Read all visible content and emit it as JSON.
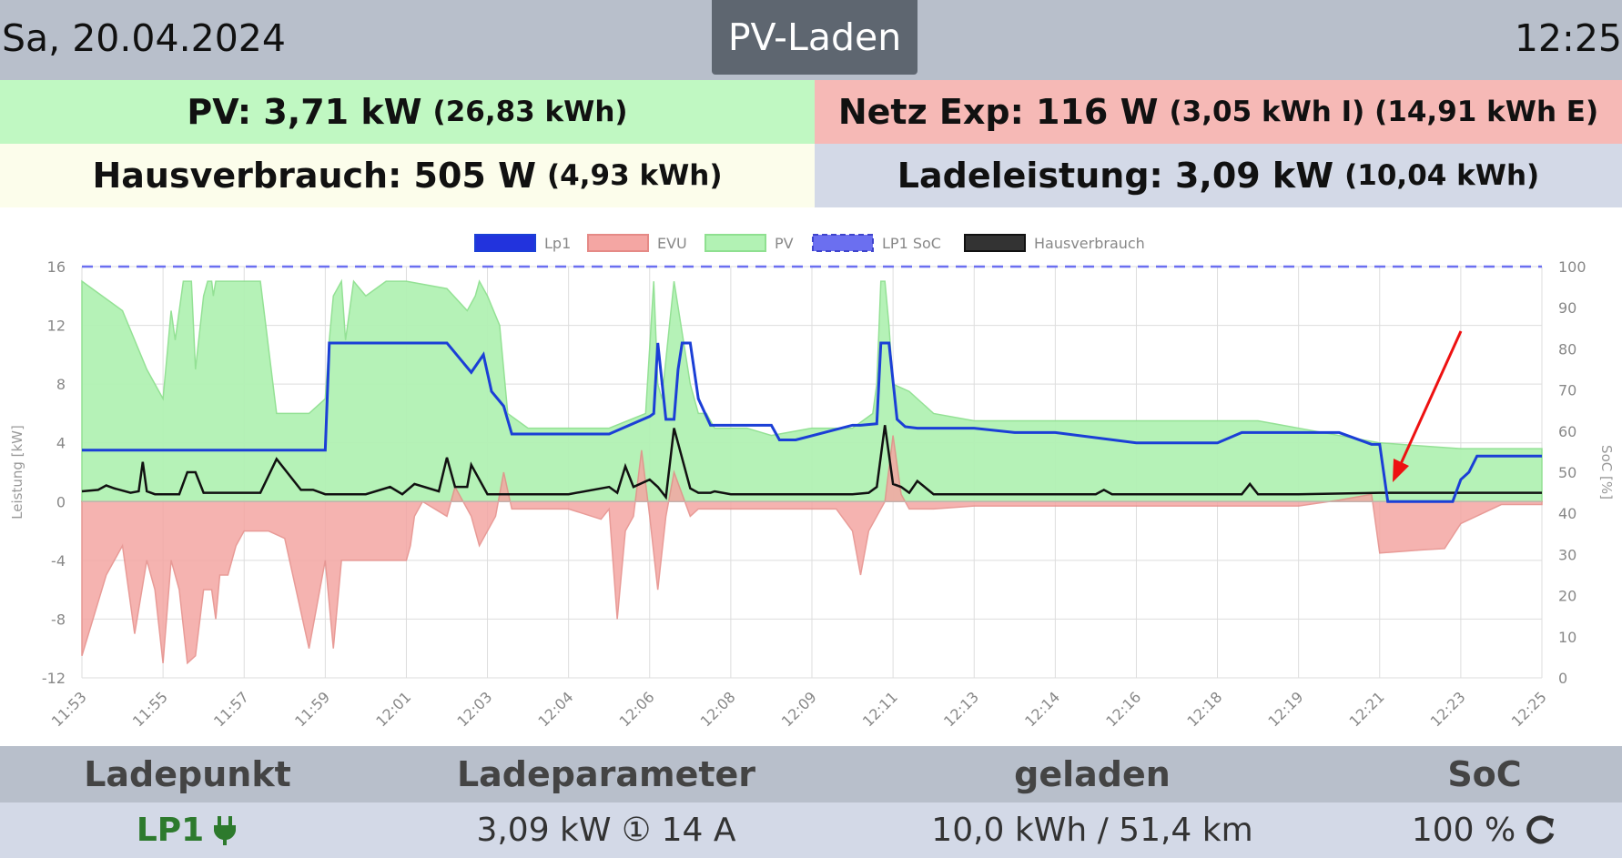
{
  "header": {
    "date": "Sa, 20.04.2024",
    "title": "PV-Laden",
    "time": "12:25"
  },
  "info": {
    "pv_label": "PV: 3,71 kW",
    "pv_energy": "(26,83 kWh)",
    "netz_label": "Netz Exp: 116 W",
    "netz_energy": "(3,05 kWh I) (14,91 kWh E)",
    "haus_label": "Hausverbrauch: 505 W",
    "haus_energy": "(4,93 kWh)",
    "lade_label": "Ladeleistung: 3,09 kW",
    "lade_energy": "(10,04 kWh)"
  },
  "colors": {
    "pv_fill": "#b2f2b4",
    "evu_fill": "#f4a6a3",
    "lp1_line": "#1b3fd6",
    "soc_line": "#6b6ff0",
    "haus_line": "#111111",
    "arrow": "#ee1111"
  },
  "chart_data": {
    "type": "area",
    "legend": [
      "Lp1",
      "EVU",
      "PV",
      "LP1 SoC",
      "Hausverbrauch"
    ],
    "legend_position": "top-center",
    "ylabel": "Leistung [kW]",
    "y2label": "SoC [%]",
    "ylim": [
      -12,
      16
    ],
    "y2lim": [
      0,
      100
    ],
    "yticks": [
      "16",
      "12",
      "8",
      "4",
      "0",
      "-4",
      "-8",
      "-12"
    ],
    "y2ticks": [
      "100",
      "90",
      "80",
      "70",
      "60",
      "50",
      "40",
      "30",
      "20",
      "10",
      "0"
    ],
    "xticks": [
      "11:53",
      "11:55",
      "11:57",
      "11:59",
      "12:01",
      "12:03",
      "12:04",
      "12:06",
      "12:08",
      "12:09",
      "12:11",
      "12:13",
      "12:14",
      "12:16",
      "12:18",
      "12:19",
      "12:21",
      "12:23",
      "12:25"
    ],
    "grid": true,
    "series": [
      {
        "name": "PV",
        "x": [
          0,
          0.5,
          0.8,
          1.0,
          1.1,
          1.15,
          1.25,
          1.35,
          1.4,
          1.5,
          1.55,
          1.6,
          1.62,
          1.65,
          1.75,
          1.8,
          2.2,
          2.4,
          2.5,
          2.8,
          3.0,
          3.05,
          3.1,
          3.2,
          3.25,
          3.35,
          3.5,
          3.75,
          4.0,
          4.5,
          4.75,
          4.85,
          4.9,
          5.0,
          5.15,
          5.25,
          5.5,
          6.0,
          6.5,
          6.95,
          7.05,
          7.1,
          7.15,
          7.3,
          7.5,
          7.6,
          7.7,
          7.8,
          8.0,
          8.1,
          8.2,
          8.5,
          9.0,
          9.5,
          9.75,
          9.8,
          9.85,
          9.9,
          9.95,
          10.0,
          10.2,
          10.4,
          10.5,
          11.0,
          12.0,
          13.0,
          14.0,
          14.5,
          15.0,
          16.0,
          16.5,
          17.0,
          17.5,
          18.0
        ],
        "values": [
          15,
          13,
          9,
          7,
          13,
          11,
          15,
          15,
          9,
          14,
          15,
          15,
          14,
          15,
          15,
          15,
          15,
          6,
          6,
          6,
          7,
          11,
          14,
          15,
          11,
          15,
          14,
          15,
          15,
          14.5,
          13,
          14,
          15,
          14,
          12,
          6,
          5,
          5,
          5,
          6,
          15,
          8,
          7,
          15,
          8,
          6,
          6,
          5,
          5,
          5,
          5,
          4.5,
          5,
          5,
          6,
          8,
          15,
          15,
          12,
          8,
          7.5,
          6.5,
          6,
          5.5,
          5.5,
          5.5,
          5.5,
          5.5,
          5,
          4,
          3.8,
          3.6,
          3.6,
          3.6
        ]
      },
      {
        "name": "EVU",
        "x": [
          0,
          0.3,
          0.5,
          0.65,
          0.8,
          0.9,
          1.0,
          1.1,
          1.2,
          1.3,
          1.4,
          1.5,
          1.6,
          1.65,
          1.7,
          1.8,
          1.9,
          2.0,
          2.1,
          2.2,
          2.3,
          2.5,
          2.8,
          3.0,
          3.1,
          3.2,
          3.3,
          3.5,
          3.8,
          4.0,
          4.05,
          4.1,
          4.2,
          4.5,
          4.6,
          4.7,
          4.8,
          4.9,
          5.0,
          5.1,
          5.2,
          5.3,
          5.5,
          6.0,
          6.4,
          6.5,
          6.6,
          6.7,
          6.8,
          6.9,
          7.0,
          7.1,
          7.2,
          7.3,
          7.5,
          7.6,
          7.7,
          7.8,
          7.9,
          8.0,
          8.5,
          9.0,
          9.3,
          9.5,
          9.6,
          9.7,
          9.8,
          9.9,
          10.0,
          10.1,
          10.2,
          10.5,
          11.0,
          12.0,
          13.0,
          14.0,
          15.0,
          15.5,
          15.9,
          16.0,
          16.5,
          16.8,
          17.0,
          17.5,
          18.0
        ],
        "values": [
          -10.5,
          -5,
          -3,
          -9,
          -4,
          -6,
          -11,
          -4,
          -6,
          -11,
          -10.5,
          -6,
          -6,
          -8,
          -5,
          -5,
          -3,
          -2,
          -2,
          -2,
          -2,
          -2.5,
          -10,
          -4,
          -10,
          -4,
          -4,
          -4,
          -4,
          -4,
          -3,
          -1,
          0,
          -1,
          1,
          0,
          -1,
          -3,
          -2,
          -1,
          2,
          -0.5,
          -0.5,
          -0.5,
          -1.2,
          -0.5,
          -8,
          -2,
          -1,
          3.5,
          -1,
          -6,
          -1,
          2,
          -1,
          -0.5,
          -0.5,
          -0.5,
          -0.5,
          -0.5,
          -0.5,
          -0.5,
          -0.5,
          -2,
          -5,
          -2,
          -1,
          0,
          4.5,
          0.5,
          -0.5,
          -0.5,
          -0.3,
          -0.3,
          -0.3,
          -0.3,
          -0.3,
          0.1,
          0.5,
          -3.5,
          -3.3,
          -3.2,
          -1.5,
          -0.2,
          -0.2
        ]
      },
      {
        "name": "Lp1",
        "x": [
          0,
          3.0,
          3.05,
          4.5,
          4.8,
          4.95,
          5.05,
          5.2,
          5.3,
          5.5,
          6.5,
          7.0,
          7.05,
          7.1,
          7.2,
          7.3,
          7.35,
          7.4,
          7.5,
          7.6,
          7.75,
          8.0,
          8.5,
          8.6,
          8.8,
          9.5,
          9.6,
          9.8,
          9.85,
          9.95,
          10.05,
          10.15,
          10.3,
          11.0,
          11.5,
          12.0,
          13.0,
          14.0,
          14.3,
          15.0,
          15.5,
          15.9,
          16.0,
          16.1,
          16.5,
          16.9,
          17.0,
          17.1,
          17.2,
          18.0
        ],
        "values": [
          3.5,
          3.5,
          10.8,
          10.8,
          8.8,
          10,
          7.5,
          6.5,
          4.6,
          4.6,
          4.6,
          5.8,
          6,
          10.8,
          5.6,
          5.6,
          9,
          10.8,
          10.8,
          7,
          5.2,
          5.2,
          5.2,
          4.2,
          4.2,
          5.2,
          5.2,
          5.3,
          10.8,
          10.8,
          5.6,
          5.1,
          5,
          5,
          4.7,
          4.7,
          4,
          4,
          4.7,
          4.7,
          4.7,
          3.9,
          3.9,
          0,
          0,
          0,
          1.5,
          2,
          3.1,
          3.1
        ]
      },
      {
        "name": "LP1 SoC",
        "x": [
          0,
          18
        ],
        "values": [
          100,
          100
        ]
      },
      {
        "name": "Hausverbrauch",
        "x": [
          0,
          0.2,
          0.3,
          0.4,
          0.6,
          0.7,
          0.75,
          0.8,
          0.9,
          1.0,
          1.1,
          1.2,
          1.3,
          1.4,
          1.5,
          2.0,
          2.2,
          2.4,
          2.7,
          2.85,
          3.0,
          3.1,
          3.5,
          3.8,
          3.95,
          4.1,
          4.4,
          4.5,
          4.6,
          4.75,
          4.8,
          5.0,
          5.1,
          5.3,
          6.0,
          6.5,
          6.6,
          6.7,
          6.8,
          7.0,
          7.1,
          7.2,
          7.3,
          7.5,
          7.6,
          7.75,
          7.8,
          8.0,
          8.5,
          9.0,
          9.5,
          9.7,
          9.8,
          9.9,
          10.0,
          10.1,
          10.2,
          10.3,
          10.5,
          11.0,
          12.0,
          12.5,
          12.6,
          12.7,
          13.0,
          14.0,
          14.3,
          14.4,
          14.5,
          15.0,
          16.0,
          17.0,
          18.0
        ],
        "values": [
          0.7,
          0.8,
          1.1,
          0.9,
          0.6,
          0.7,
          2.7,
          0.7,
          0.5,
          0.5,
          0.5,
          0.5,
          2,
          2,
          0.6,
          0.6,
          0.6,
          2.9,
          0.8,
          0.8,
          0.5,
          0.5,
          0.5,
          1,
          0.5,
          1.2,
          0.7,
          3,
          1,
          1,
          2.5,
          0.5,
          0.5,
          0.5,
          0.5,
          1,
          0.6,
          2.4,
          1,
          1.5,
          1,
          0.3,
          5,
          0.9,
          0.6,
          0.6,
          0.7,
          0.5,
          0.5,
          0.5,
          0.5,
          0.6,
          1,
          5.2,
          1.2,
          1,
          0.6,
          1.4,
          0.5,
          0.5,
          0.5,
          0.5,
          0.8,
          0.5,
          0.5,
          0.5,
          0.5,
          1.2,
          0.5,
          0.5,
          0.6,
          0.6,
          0.6
        ]
      }
    ]
  },
  "table": {
    "headers": [
      "Ladepunkt",
      "Ladeparameter",
      "geladen",
      "SoC"
    ],
    "row": {
      "ladepunkt": "LP1",
      "plug_icon": "plug-icon",
      "parameter": "3,09 kW ① 14 A",
      "geladen": "10,0 kWh / 51,4 km",
      "soc": "100 %",
      "refresh_icon": "refresh-icon"
    }
  }
}
